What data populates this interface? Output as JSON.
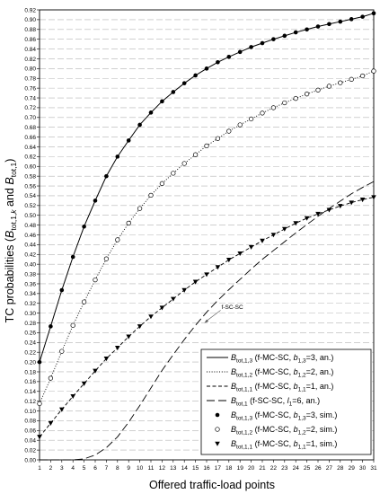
{
  "chart_data": {
    "type": "line",
    "xlabel": "Offered traffic-load points",
    "ylabel": "TC probabilities (B_tot,1,k and B_tot,1)",
    "ylabel_parts": {
      "pre": "TC probabilities (",
      "b1": "B",
      "s1": "tot,1,",
      "k": "k",
      "and": " and ",
      "b2": "B",
      "s2": "tot,1",
      "post": ")"
    },
    "xlim": [
      1,
      31
    ],
    "ylim": [
      0,
      0.92
    ],
    "x_ticks": [
      1,
      2,
      3,
      4,
      5,
      6,
      7,
      8,
      9,
      10,
      11,
      12,
      13,
      14,
      15,
      16,
      17,
      18,
      19,
      20,
      21,
      22,
      23,
      24,
      25,
      26,
      27,
      28,
      29,
      30,
      31
    ],
    "y_ticks": [
      "0.00",
      "0.02",
      "0.04",
      "0.06",
      "0.08",
      "0.10",
      "0.12",
      "0.14",
      "0.16",
      "0.18",
      "0.20",
      "0.22",
      "0.24",
      "0.26",
      "0.28",
      "0.30",
      "0.32",
      "0.34",
      "0.36",
      "0.38",
      "0.40",
      "0.42",
      "0.44",
      "0.46",
      "0.48",
      "0.50",
      "0.52",
      "0.54",
      "0.56",
      "0.58",
      "0.60",
      "0.62",
      "0.64",
      "0.66",
      "0.68",
      "0.70",
      "0.72",
      "0.74",
      "0.76",
      "0.78",
      "0.80",
      "0.82",
      "0.84",
      "0.86",
      "0.88",
      "0.90",
      "0.92"
    ],
    "grid": "horizontal dashed",
    "legend_position": "bottom-right",
    "annotation": {
      "text": "f-SC-SC",
      "points_to": [
        15.8,
        0.28
      ]
    },
    "series": [
      {
        "id": "an13",
        "style": "solid-line",
        "label": {
          "sym": "B",
          "sub": "tot,1,3",
          "rest": " (f-MC-SC, ",
          "bsym": "b",
          "bsub": "1,3",
          "tail": "=3, an.)"
        },
        "x": [
          1,
          2,
          3,
          4,
          5,
          6,
          7,
          8,
          9,
          10,
          11,
          12,
          13,
          14,
          15,
          16,
          17,
          18,
          19,
          20,
          21,
          22,
          23,
          24,
          25,
          26,
          27,
          28,
          29,
          30,
          31
        ],
        "y": [
          0.2,
          0.273,
          0.347,
          0.415,
          0.477,
          0.53,
          0.58,
          0.62,
          0.653,
          0.685,
          0.71,
          0.733,
          0.752,
          0.77,
          0.786,
          0.8,
          0.813,
          0.824,
          0.834,
          0.844,
          0.852,
          0.86,
          0.867,
          0.874,
          0.88,
          0.886,
          0.891,
          0.896,
          0.901,
          0.906,
          0.913
        ]
      },
      {
        "id": "an12",
        "style": "dotted-line",
        "label": {
          "sym": "B",
          "sub": "tot,1,2",
          "rest": " (f-MC-SC, ",
          "bsym": "b",
          "bsub": "1,2",
          "tail": "=2, an.)"
        },
        "x": [
          1,
          2,
          3,
          4,
          5,
          6,
          7,
          8,
          9,
          10,
          11,
          12,
          13,
          14,
          15,
          16,
          17,
          18,
          19,
          20,
          21,
          22,
          23,
          24,
          25,
          26,
          27,
          28,
          29,
          30,
          31
        ],
        "y": [
          0.115,
          0.167,
          0.222,
          0.275,
          0.323,
          0.368,
          0.411,
          0.45,
          0.484,
          0.514,
          0.541,
          0.565,
          0.586,
          0.606,
          0.624,
          0.642,
          0.657,
          0.672,
          0.685,
          0.697,
          0.709,
          0.72,
          0.73,
          0.739,
          0.748,
          0.756,
          0.764,
          0.771,
          0.778,
          0.785,
          0.795
        ]
      },
      {
        "id": "an11",
        "style": "dashed-line",
        "label": {
          "sym": "B",
          "sub": "tot,1,1",
          "rest": " (f-MC-SC, ",
          "bsym": "b",
          "bsub": "1,1",
          "tail": "=1, an.)"
        },
        "x": [
          1,
          2,
          3,
          4,
          5,
          6,
          7,
          8,
          9,
          10,
          11,
          12,
          13,
          14,
          15,
          16,
          17,
          18,
          19,
          20,
          21,
          22,
          23,
          24,
          25,
          26,
          27,
          28,
          29,
          30,
          31
        ],
        "y": [
          0.047,
          0.075,
          0.103,
          0.13,
          0.156,
          0.182,
          0.207,
          0.229,
          0.252,
          0.273,
          0.293,
          0.311,
          0.329,
          0.347,
          0.364,
          0.379,
          0.394,
          0.409,
          0.422,
          0.435,
          0.448,
          0.46,
          0.472,
          0.484,
          0.494,
          0.503,
          0.511,
          0.519,
          0.526,
          0.532,
          0.537
        ]
      },
      {
        "id": "sc",
        "style": "long-dash-line",
        "label": {
          "sym": "B",
          "sub": "tot,1",
          "rest": " (f-SC-SC, ",
          "bsym": "l",
          "bsub": "1",
          "tail": "=6, an.)"
        },
        "x": [
          1,
          2,
          3,
          4,
          5,
          6,
          7,
          8,
          9,
          10,
          11,
          12,
          13,
          14,
          15,
          16,
          17,
          18,
          19,
          20,
          21,
          22,
          23,
          24,
          25,
          26,
          27,
          28,
          29,
          30,
          31
        ],
        "y": [
          0.0,
          0.0,
          0.0,
          0.0,
          0.002,
          0.01,
          0.025,
          0.047,
          0.077,
          0.111,
          0.147,
          0.183,
          0.215,
          0.246,
          0.275,
          0.302,
          0.326,
          0.348,
          0.369,
          0.39,
          0.41,
          0.428,
          0.446,
          0.464,
          0.481,
          0.498,
          0.514,
          0.529,
          0.544,
          0.557,
          0.569
        ]
      },
      {
        "id": "sim13",
        "style": "filled-circle",
        "label": {
          "sym": "B",
          "sub": "tot,1,3",
          "rest": " (f-MC-SC, ",
          "bsym": "b",
          "bsub": "1,3",
          "tail": "=3, sim.)"
        },
        "x": [
          1,
          2,
          3,
          4,
          5,
          6,
          7,
          8,
          9,
          10,
          11,
          12,
          13,
          14,
          15,
          16,
          17,
          18,
          19,
          20,
          21,
          22,
          23,
          24,
          25,
          26,
          27,
          28,
          29,
          30,
          31
        ],
        "y": [
          0.2,
          0.273,
          0.347,
          0.415,
          0.477,
          0.53,
          0.58,
          0.62,
          0.653,
          0.685,
          0.71,
          0.733,
          0.752,
          0.77,
          0.786,
          0.8,
          0.813,
          0.824,
          0.834,
          0.844,
          0.852,
          0.86,
          0.867,
          0.874,
          0.88,
          0.886,
          0.891,
          0.896,
          0.901,
          0.906,
          0.913
        ]
      },
      {
        "id": "sim12",
        "style": "open-circle",
        "label": {
          "sym": "B",
          "sub": "tot,1,2",
          "rest": " (f-MC-SC, ",
          "bsym": "b",
          "bsub": "1,2",
          "tail": "=2, sim.)"
        },
        "x": [
          1,
          2,
          3,
          4,
          5,
          6,
          7,
          8,
          9,
          10,
          11,
          12,
          13,
          14,
          15,
          16,
          17,
          18,
          19,
          20,
          21,
          22,
          23,
          24,
          25,
          26,
          27,
          28,
          29,
          30,
          31
        ],
        "y": [
          0.115,
          0.167,
          0.222,
          0.275,
          0.323,
          0.368,
          0.411,
          0.45,
          0.484,
          0.514,
          0.541,
          0.565,
          0.586,
          0.606,
          0.624,
          0.642,
          0.657,
          0.672,
          0.685,
          0.697,
          0.709,
          0.72,
          0.73,
          0.739,
          0.748,
          0.756,
          0.764,
          0.771,
          0.778,
          0.785,
          0.795
        ]
      },
      {
        "id": "sim11",
        "style": "filled-triangle-down",
        "label": {
          "sym": "B",
          "sub": "tot,1,1",
          "rest": " (f-MC-SC, ",
          "bsym": "b",
          "bsub": "1,1",
          "tail": "=1, sim.)"
        },
        "x": [
          1,
          2,
          3,
          4,
          5,
          6,
          7,
          8,
          9,
          10,
          11,
          12,
          13,
          14,
          15,
          16,
          17,
          18,
          19,
          20,
          21,
          22,
          23,
          24,
          25,
          26,
          27,
          28,
          29,
          30,
          31
        ],
        "y": [
          0.047,
          0.075,
          0.103,
          0.13,
          0.156,
          0.182,
          0.207,
          0.229,
          0.252,
          0.273,
          0.293,
          0.311,
          0.329,
          0.347,
          0.364,
          0.379,
          0.394,
          0.409,
          0.422,
          0.435,
          0.448,
          0.46,
          0.472,
          0.484,
          0.494,
          0.503,
          0.511,
          0.519,
          0.526,
          0.532,
          0.537
        ]
      }
    ]
  }
}
